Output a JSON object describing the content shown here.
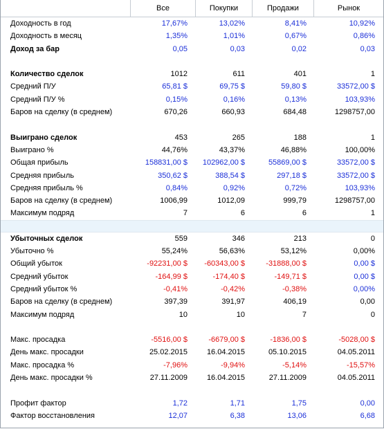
{
  "header": {
    "label": "",
    "cols": [
      "Все",
      "Покупки",
      "Продажи",
      "Рынок"
    ]
  },
  "rows": [
    {
      "type": "data",
      "label": "Доходность в год",
      "color": "blue",
      "values": [
        "17,67%",
        "13,02%",
        "8,41%",
        "10,92%"
      ]
    },
    {
      "type": "data",
      "label": "Доходность в месяц",
      "color": "blue",
      "values": [
        "1,35%",
        "1,01%",
        "0,67%",
        "0,86%"
      ]
    },
    {
      "type": "data",
      "label": "Доход за бар",
      "bold": true,
      "color": "blue",
      "values": [
        "0,05",
        "0,03",
        "0,02",
        "0,03"
      ]
    },
    {
      "type": "spacer"
    },
    {
      "type": "data",
      "label": "Количество сделок",
      "bold": true,
      "color": "black",
      "values": [
        "1012",
        "611",
        "401",
        "1"
      ]
    },
    {
      "type": "data",
      "label": "Средний П/У",
      "color": "blue",
      "values": [
        "65,81 $",
        "69,75 $",
        "59,80 $",
        "33572,00 $"
      ]
    },
    {
      "type": "data",
      "label": "Средний П/У %",
      "color": "blue",
      "values": [
        "0,15%",
        "0,16%",
        "0,13%",
        "103,93%"
      ]
    },
    {
      "type": "data",
      "label": "Баров на сделку (в среднем)",
      "color": "black",
      "values": [
        "670,26",
        "660,93",
        "684,48",
        "1298757,00"
      ]
    },
    {
      "type": "spacer"
    },
    {
      "type": "data",
      "label": "Выиграно сделок",
      "bold": true,
      "color": "black",
      "values": [
        "453",
        "265",
        "188",
        "1"
      ]
    },
    {
      "type": "data",
      "label": "Выиграно %",
      "color": "black",
      "values": [
        "44,76%",
        "43,37%",
        "46,88%",
        "100,00%"
      ]
    },
    {
      "type": "data",
      "label": "Общая прибыль",
      "color": "blue",
      "values": [
        "158831,00 $",
        "102962,00 $",
        "55869,00 $",
        "33572,00 $"
      ]
    },
    {
      "type": "data",
      "label": "Средняя прибыль",
      "color": "blue",
      "values": [
        "350,62 $",
        "388,54 $",
        "297,18 $",
        "33572,00 $"
      ]
    },
    {
      "type": "data",
      "label": "Средняя прибыль %",
      "color": "blue",
      "values": [
        "0,84%",
        "0,92%",
        "0,72%",
        "103,93%"
      ]
    },
    {
      "type": "data",
      "label": "Баров на сделку (в среднем)",
      "color": "black",
      "values": [
        "1006,99",
        "1012,09",
        "999,79",
        "1298757,00"
      ]
    },
    {
      "type": "data",
      "label": "Максимум подряд",
      "color": "black",
      "values": [
        "7",
        "6",
        "6",
        "1"
      ]
    },
    {
      "type": "sep"
    },
    {
      "type": "data",
      "label": "Убыточных сделок",
      "bold": true,
      "color": "black",
      "values": [
        "559",
        "346",
        "213",
        "0"
      ]
    },
    {
      "type": "data",
      "label": "Убыточно %",
      "color": "black",
      "values": [
        "55,24%",
        "56,63%",
        "53,12%",
        "0,00%"
      ]
    },
    {
      "type": "data",
      "label": "Общий убыток",
      "color": "red",
      "colors": [
        "red",
        "red",
        "red",
        "blue"
      ],
      "values": [
        "-92231,00 $",
        "-60343,00 $",
        "-31888,00 $",
        "0,00 $"
      ]
    },
    {
      "type": "data",
      "label": "Средний убыток",
      "color": "red",
      "colors": [
        "red",
        "red",
        "red",
        "blue"
      ],
      "values": [
        "-164,99 $",
        "-174,40 $",
        "-149,71 $",
        "0,00 $"
      ]
    },
    {
      "type": "data",
      "label": "Средний убыток %",
      "color": "red",
      "colors": [
        "red",
        "red",
        "red",
        "blue"
      ],
      "values": [
        "-0,41%",
        "-0,42%",
        "-0,38%",
        "0,00%"
      ]
    },
    {
      "type": "data",
      "label": "Баров на сделку (в среднем)",
      "color": "black",
      "values": [
        "397,39",
        "391,97",
        "406,19",
        "0,00"
      ]
    },
    {
      "type": "data",
      "label": "Максимум подряд",
      "color": "black",
      "values": [
        "10",
        "10",
        "7",
        "0"
      ]
    },
    {
      "type": "spacer"
    },
    {
      "type": "data",
      "label": "Макс. просадка",
      "color": "red",
      "values": [
        "-5516,00 $",
        "-6679,00 $",
        "-1836,00 $",
        "-5028,00 $"
      ]
    },
    {
      "type": "data",
      "label": "День макс. просадки",
      "color": "black",
      "values": [
        "25.02.2015",
        "16.04.2015",
        "05.10.2015",
        "04.05.2011"
      ]
    },
    {
      "type": "data",
      "label": "Макс. просадка %",
      "color": "red",
      "values": [
        "-7,96%",
        "-9,94%",
        "-5,14%",
        "-15,57%"
      ]
    },
    {
      "type": "data",
      "label": "День макс. просадки %",
      "color": "black",
      "values": [
        "27.11.2009",
        "16.04.2015",
        "27.11.2009",
        "04.05.2011"
      ]
    },
    {
      "type": "spacer"
    },
    {
      "type": "data",
      "label": "Профит фактор",
      "color": "blue",
      "values": [
        "1,72",
        "1,71",
        "1,75",
        "0,00"
      ]
    },
    {
      "type": "data",
      "label": "Фактор восстановления",
      "color": "blue",
      "values": [
        "12,07",
        "6,38",
        "13,06",
        "6,68"
      ]
    }
  ]
}
